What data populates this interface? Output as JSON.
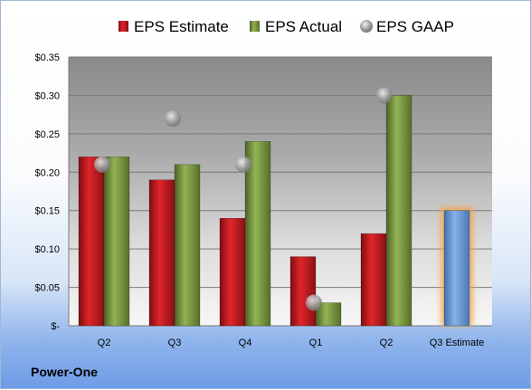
{
  "company_name": "Power-One",
  "chart_data": {
    "type": "bar",
    "categories": [
      "Q2",
      "Q3",
      "Q4",
      "Q1",
      "Q2",
      "Q3 Estimate"
    ],
    "series": [
      {
        "name": "EPS Estimate",
        "kind": "bar",
        "color": "#c8161d",
        "values": [
          0.22,
          0.19,
          0.14,
          0.09,
          0.12,
          null
        ]
      },
      {
        "name": "EPS Actual",
        "kind": "bar",
        "color": "#77933c",
        "values": [
          0.22,
          0.21,
          0.24,
          0.03,
          0.3,
          null
        ]
      },
      {
        "name": "EPS GAAP",
        "kind": "marker",
        "color": "#a6a6a6",
        "values": [
          0.21,
          0.27,
          0.21,
          0.03,
          0.3,
          null
        ]
      },
      {
        "name": "",
        "kind": "bar",
        "color": "#5b8fd1",
        "highlight": "#f4a340",
        "values": [
          null,
          null,
          null,
          null,
          null,
          0.15
        ]
      }
    ],
    "ylim": [
      0,
      0.35
    ],
    "yticks": [
      0,
      0.05,
      0.1,
      0.15,
      0.2,
      0.25,
      0.3,
      0.35
    ],
    "ytick_labels": [
      "$-",
      "$0.05",
      "$0.10",
      "$0.15",
      "$0.20",
      "$0.25",
      "$0.30",
      "$0.35"
    ],
    "legend_position": "top",
    "grid": true,
    "title": "",
    "xlabel": "",
    "ylabel": ""
  }
}
